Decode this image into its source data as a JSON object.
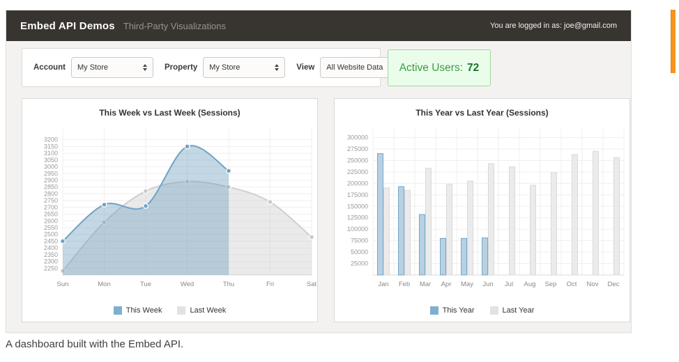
{
  "header": {
    "title": "Embed API Demos",
    "subtitle": "Third-Party Visualizations",
    "login_status": "You are logged in as: joe@gmail.com"
  },
  "toolbar": {
    "account_label": "Account",
    "account_value": "My Store",
    "property_label": "Property",
    "property_value": "My Store",
    "view_label": "View",
    "view_value": "All Website Data"
  },
  "active_users": {
    "label": "Active Users:",
    "value": "72"
  },
  "caption": "A dashboard built with the Embed API.",
  "colors": {
    "header_bg": "#38342f",
    "accent_orange": "#f7941d",
    "active_green": "#3e9a47",
    "panel_border": "#dcd9d6",
    "series_blue": "#73a9ca",
    "series_gray": "#d8d8d8",
    "grid": "#f3eded",
    "axis_text": "#999999"
  },
  "chart_data": [
    {
      "type": "area",
      "title": "This Week vs Last Week (Sessions)",
      "categories": [
        "Sun",
        "Mon",
        "Tue",
        "Wed",
        "Thu",
        "Fri",
        "Sat"
      ],
      "series": [
        {
          "name": "This Week",
          "stroke": "#6fa3c4",
          "fill": "rgba(113,160,191,0.42)",
          "marker": "#6fa3c4",
          "swatch": "#7db0d0",
          "values": [
            2450,
            2720,
            2710,
            3150,
            2970,
            null,
            null
          ]
        },
        {
          "name": "Last Week",
          "stroke": "#cfcfcf",
          "fill": "rgba(201,201,201,0.38)",
          "marker": "#c9c9c9",
          "swatch": "#e2e2e2",
          "values": [
            2230,
            2590,
            2820,
            2890,
            2850,
            2740,
            2480
          ]
        }
      ],
      "ylim": [
        2200,
        3250
      ],
      "yticks": [
        3200,
        3150,
        3100,
        3050,
        3000,
        2950,
        2900,
        2850,
        2800,
        2750,
        2700,
        2650,
        2600,
        2550,
        2500,
        2450,
        2400,
        2350,
        2300,
        2250
      ],
      "grid": true,
      "legend_position": "bottom",
      "xlabel": "",
      "ylabel": ""
    },
    {
      "type": "bar",
      "title": "This Year vs Last Year (Sessions)",
      "categories": [
        "Jan",
        "Feb",
        "Mar",
        "Apr",
        "May",
        "Jun",
        "Jul",
        "Aug",
        "Sep",
        "Oct",
        "Nov",
        "Dec"
      ],
      "series": [
        {
          "name": "This Year",
          "stroke": "#73a9ca",
          "fill": "#b7d0e2",
          "swatch": "#7db0d0",
          "values": [
            265000,
            193000,
            132000,
            80000,
            80000,
            81000,
            null,
            null,
            null,
            null,
            null,
            null
          ]
        },
        {
          "name": "Last Year",
          "stroke": "#d9d9d9",
          "fill": "#ebebeb",
          "swatch": "#e2e2e2",
          "values": [
            190000,
            185000,
            233000,
            198000,
            205000,
            243000,
            236000,
            196000,
            223000,
            263000,
            270000,
            256000
          ]
        }
      ],
      "ylim": [
        0,
        310000
      ],
      "yticks": [
        300000,
        275000,
        250000,
        225000,
        200000,
        175000,
        150000,
        125000,
        100000,
        75000,
        50000,
        25000
      ],
      "grid": true,
      "legend_position": "bottom",
      "xlabel": "",
      "ylabel": ""
    }
  ]
}
